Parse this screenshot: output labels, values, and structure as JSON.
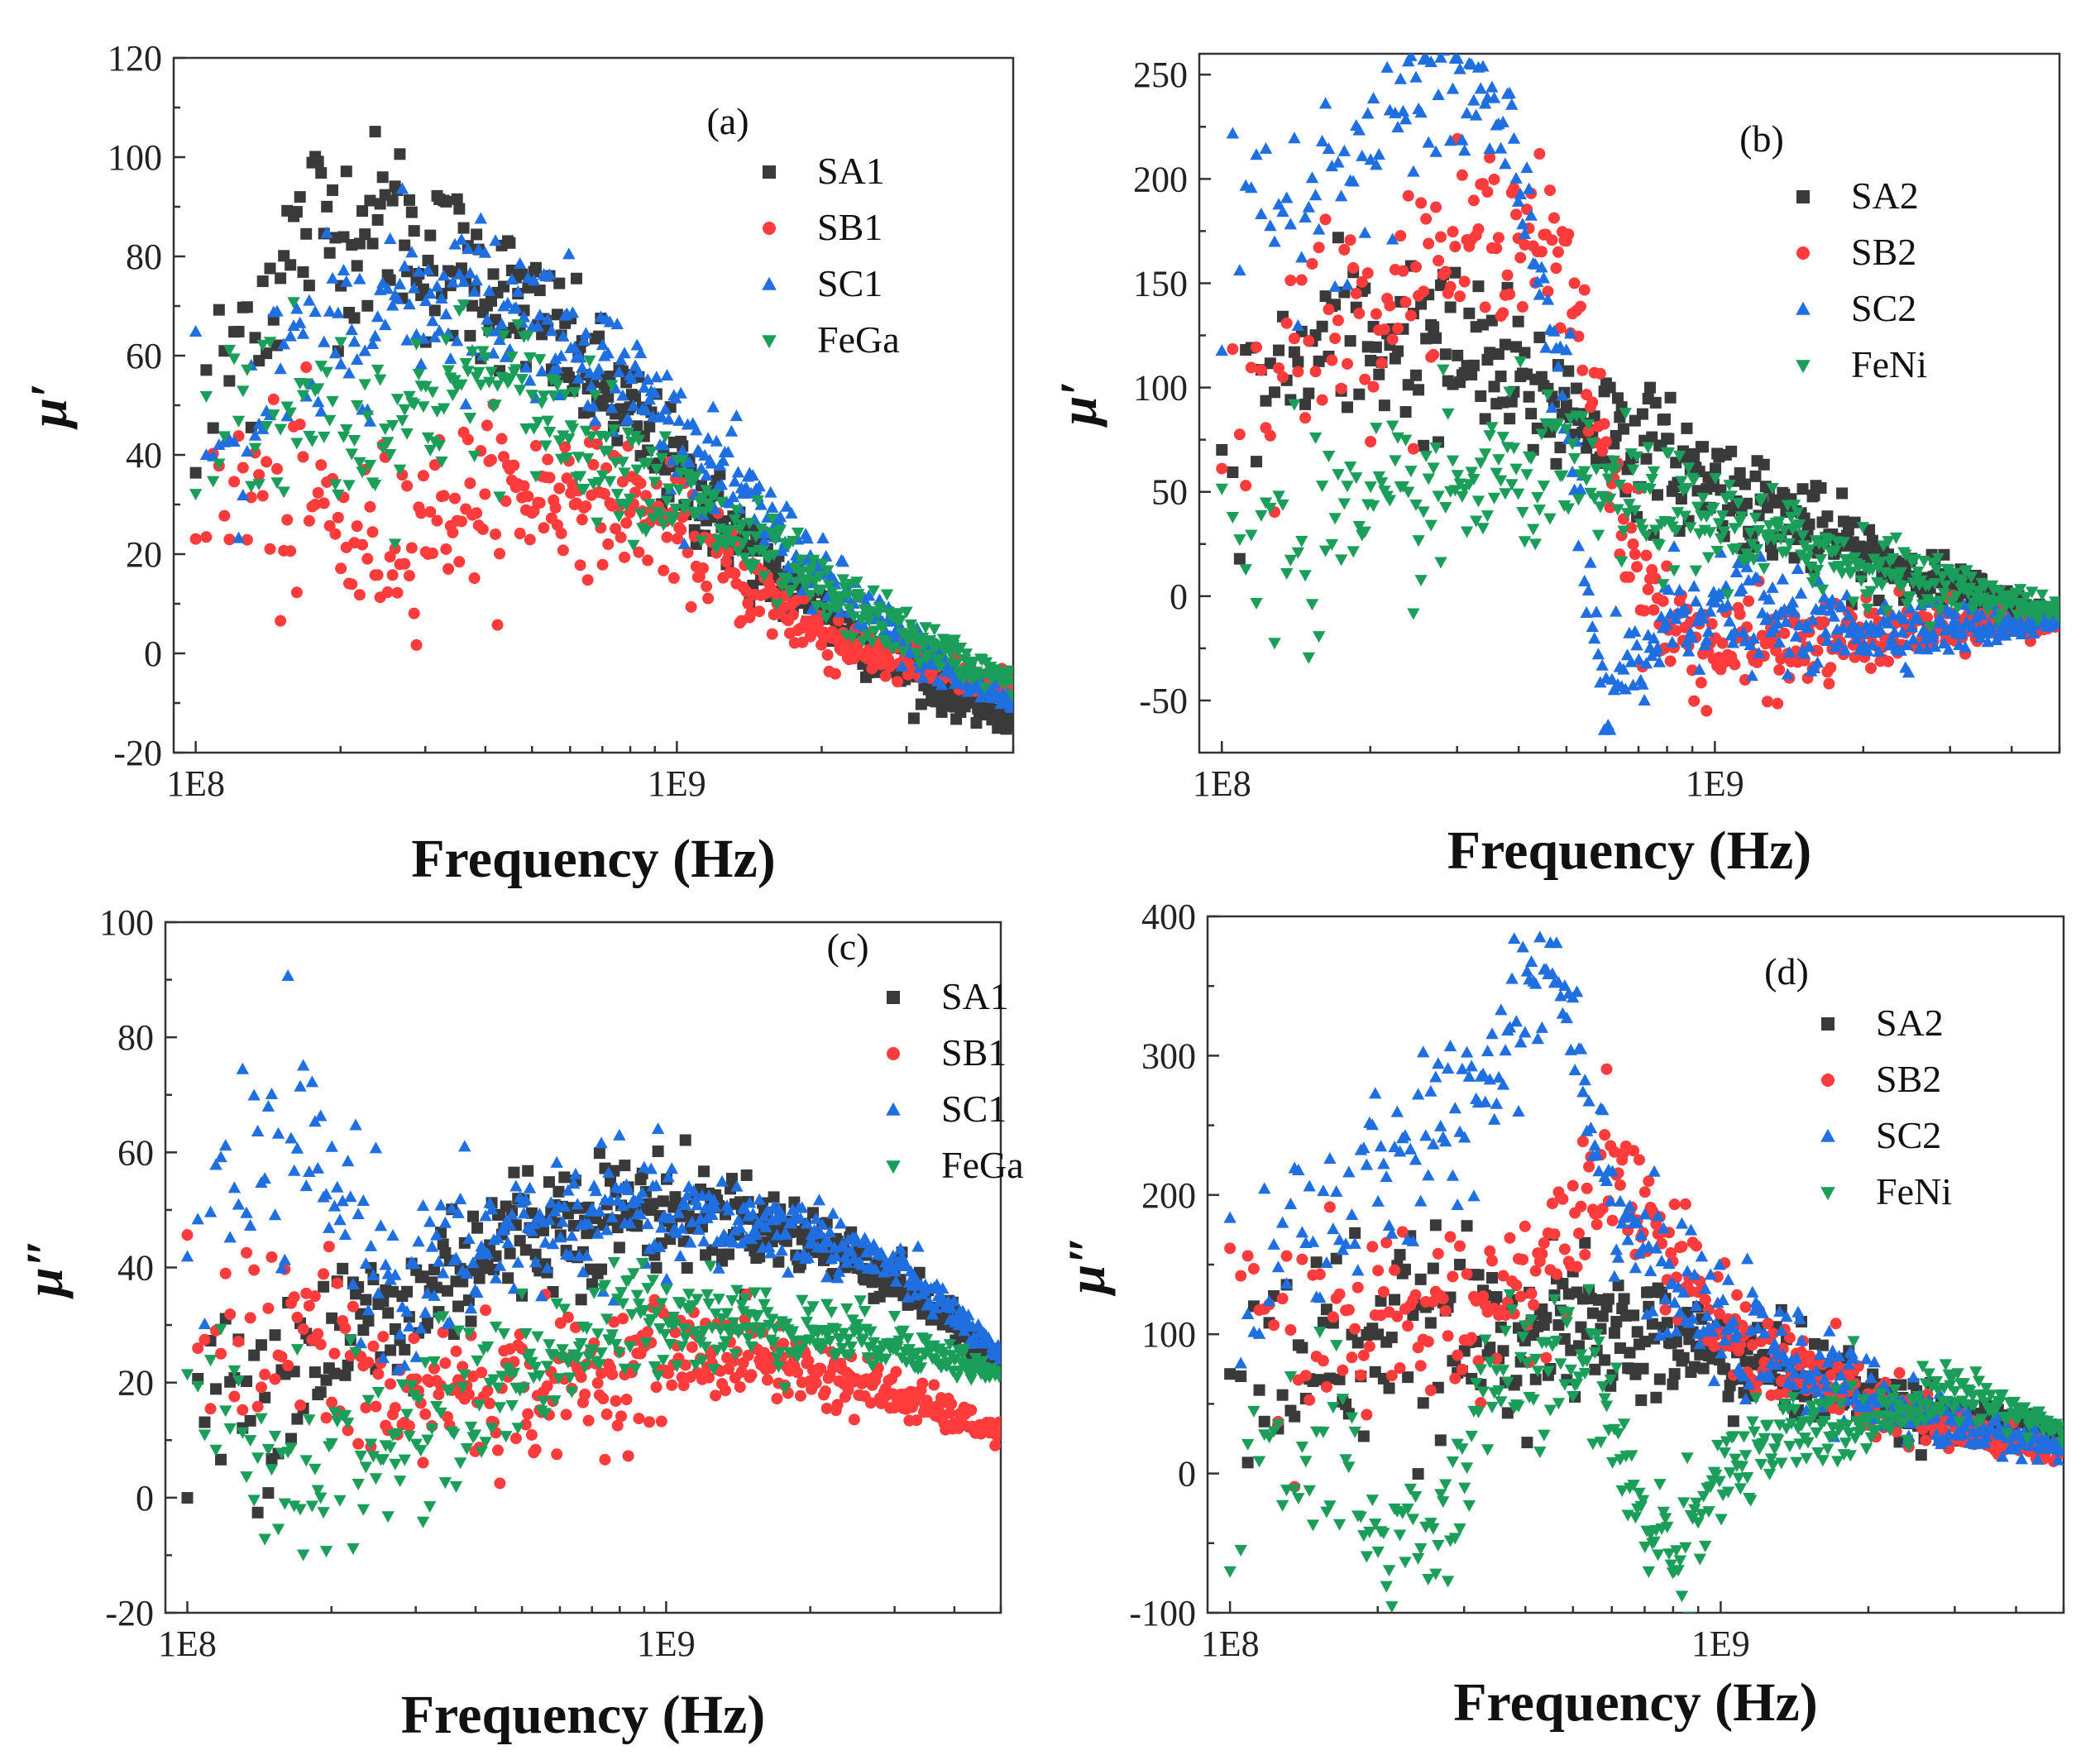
{
  "chart_data": [
    {
      "panel": "(a)",
      "type": "scatter",
      "xscale": "log",
      "xlim": [
        90000000,
        5000000000
      ],
      "ylim": [
        -20,
        120
      ],
      "yticks": [
        -20,
        0,
        20,
        40,
        60,
        80,
        100,
        120
      ],
      "xticks": [
        {
          "v": 100000000,
          "label": "1E8"
        },
        {
          "v": 1000000000,
          "label": "1E9"
        }
      ],
      "xlabel": "Frequency (Hz)",
      "ylabel": "μ′",
      "legend": [
        "SA1",
        "SB1",
        "SC1",
        "FeGa"
      ],
      "series": [
        {
          "name": "SA1",
          "color": "#3a3a3a",
          "marker": "square",
          "x": [
            100000000.0,
            120000000.0,
            150000000.0,
            180000000.0,
            220000000.0,
            260000000.0,
            300000000.0,
            350000000.0,
            400000000.0,
            500000000.0,
            600000000.0,
            800000000.0,
            1000000000.0,
            1500000000.0,
            2000000000.0,
            3000000000.0,
            4000000000.0,
            5000000000.0
          ],
          "y": [
            40,
            62,
            78,
            88,
            85,
            88,
            80,
            78,
            75,
            68,
            60,
            48,
            36,
            18,
            8,
            -4,
            -10,
            -14
          ]
        },
        {
          "name": "SB1",
          "color": "#ff3b3b",
          "marker": "circle",
          "x": [
            100000000.0,
            120000000.0,
            150000000.0,
            180000000.0,
            220000000.0,
            260000000.0,
            300000000.0,
            350000000.0,
            400000000.0,
            500000000.0,
            600000000.0,
            800000000.0,
            1000000000.0,
            1500000000.0,
            2000000000.0,
            3000000000.0,
            4000000000.0,
            5000000000.0
          ],
          "y": [
            22,
            35,
            28,
            30,
            20,
            25,
            28,
            30,
            32,
            32,
            33,
            30,
            25,
            12,
            4,
            -2,
            -5,
            -6
          ]
        },
        {
          "name": "SC1",
          "color": "#1f6fe0",
          "marker": "triangle-up",
          "x": [
            100000000.0,
            120000000.0,
            150000000.0,
            180000000.0,
            220000000.0,
            260000000.0,
            300000000.0,
            350000000.0,
            400000000.0,
            500000000.0,
            600000000.0,
            800000000.0,
            1000000000.0,
            1500000000.0,
            2000000000.0,
            3000000000.0,
            4000000000.0,
            5000000000.0
          ],
          "y": [
            55,
            40,
            55,
            58,
            70,
            72,
            72,
            74,
            72,
            68,
            64,
            55,
            45,
            28,
            15,
            2,
            -6,
            -10
          ]
        },
        {
          "name": "FeGa",
          "color": "#1a9e5a",
          "marker": "triangle-down",
          "x": [
            100000000.0,
            120000000.0,
            150000000.0,
            180000000.0,
            220000000.0,
            260000000.0,
            300000000.0,
            350000000.0,
            400000000.0,
            500000000.0,
            600000000.0,
            800000000.0,
            1000000000.0,
            1500000000.0,
            2000000000.0,
            3000000000.0,
            4000000000.0,
            5000000000.0
          ],
          "y": [
            35,
            55,
            48,
            50,
            45,
            48,
            50,
            55,
            55,
            52,
            46,
            38,
            32,
            20,
            12,
            4,
            -2,
            -6
          ]
        }
      ]
    },
    {
      "panel": "(b)",
      "type": "scatter",
      "xscale": "log",
      "xlim": [
        90000000,
        5000000000
      ],
      "ylim": [
        -75,
        260
      ],
      "yticks": [
        -50,
        0,
        50,
        100,
        150,
        200,
        250
      ],
      "xticks": [
        {
          "v": 100000000,
          "label": "1E8"
        },
        {
          "v": 1000000000,
          "label": "1E9"
        }
      ],
      "xlabel": "Frequency (Hz)",
      "ylabel": "μ′",
      "legend": [
        "SA2",
        "SB2",
        "SC2",
        "FeNi"
      ],
      "series": [
        {
          "name": "SA2",
          "color": "#3a3a3a",
          "marker": "square",
          "x": [
            100000000.0,
            120000000.0,
            150000000.0,
            200000000.0,
            250000000.0,
            300000000.0,
            350000000.0,
            400000000.0,
            500000000.0,
            600000000.0,
            800000000.0,
            1000000000.0,
            1500000000.0,
            2000000000.0,
            3000000000.0,
            4000000000.0,
            5000000000.0
          ],
          "y": [
            50,
            100,
            115,
            125,
            122,
            115,
            110,
            100,
            90,
            80,
            65,
            55,
            35,
            20,
            5,
            -5,
            -10
          ]
        },
        {
          "name": "SB2",
          "color": "#ff3b3b",
          "marker": "circle",
          "x": [
            100000000.0,
            120000000.0,
            150000000.0,
            200000000.0,
            250000000.0,
            300000000.0,
            350000000.0,
            400000000.0,
            450000000.0,
            500000000.0,
            550000000.0,
            600000000.0,
            700000000.0,
            800000000.0,
            1000000000.0,
            1500000000.0,
            2000000000.0,
            3000000000.0,
            5000000000.0
          ],
          "y": [
            75,
            110,
            125,
            140,
            155,
            165,
            175,
            180,
            170,
            150,
            110,
            70,
            15,
            -15,
            -25,
            -25,
            -20,
            -15,
            -12
          ]
        },
        {
          "name": "SC2",
          "color": "#1f6fe0",
          "marker": "triangle-up",
          "x": [
            100000000.0,
            120000000.0,
            150000000.0,
            200000000.0,
            250000000.0,
            300000000.0,
            350000000.0,
            400000000.0,
            450000000.0,
            500000000.0,
            550000000.0,
            600000000.0,
            700000000.0,
            800000000.0,
            900000000.0,
            1000000000.0,
            1500000000.0,
            2000000000.0,
            3000000000.0,
            5000000000.0
          ],
          "y": [
            150,
            170,
            200,
            220,
            240,
            245,
            230,
            195,
            150,
            90,
            10,
            -55,
            -35,
            -10,
            -5,
            -5,
            -15,
            -15,
            -15,
            -12
          ]
        },
        {
          "name": "FeNi",
          "color": "#1a9e5a",
          "marker": "triangle-down",
          "x": [
            100000000.0,
            120000000.0,
            150000000.0,
            200000000.0,
            250000000.0,
            300000000.0,
            350000000.0,
            400000000.0,
            500000000.0,
            600000000.0,
            800000000.0,
            1000000000.0,
            1500000000.0,
            2000000000.0,
            3000000000.0,
            5000000000.0
          ],
          "y": [
            20,
            40,
            35,
            30,
            45,
            50,
            55,
            60,
            58,
            50,
            40,
            35,
            25,
            15,
            5,
            -8
          ]
        }
      ]
    },
    {
      "panel": "(c)",
      "type": "scatter",
      "xscale": "log",
      "xlim": [
        90000000,
        5000000000
      ],
      "ylim": [
        -20,
        100
      ],
      "yticks": [
        -20,
        0,
        20,
        40,
        60,
        80,
        100
      ],
      "xticks": [
        {
          "v": 100000000,
          "label": "1E8"
        },
        {
          "v": 1000000000,
          "label": "1E9"
        }
      ],
      "xlabel": "Frequency (Hz)",
      "ylabel": "μ″",
      "legend": [
        "SA1",
        "SB1",
        "SC1",
        "FeGa"
      ],
      "series": [
        {
          "name": "SA1",
          "color": "#3a3a3a",
          "marker": "square",
          "x": [
            100000000.0,
            130000000.0,
            170000000.0,
            220000000.0,
            280000000.0,
            350000000.0,
            450000000.0,
            600000000.0,
            800000000.0,
            1000000000.0,
            1500000000.0,
            2000000000.0,
            3000000000.0,
            4000000000.0,
            5000000000.0
          ],
          "y": [
            10,
            20,
            25,
            30,
            30,
            40,
            45,
            48,
            50,
            50,
            48,
            45,
            38,
            30,
            24
          ]
        },
        {
          "name": "SB1",
          "color": "#ff3b3b",
          "marker": "circle",
          "x": [
            100000000.0,
            130000000.0,
            170000000.0,
            220000000.0,
            280000000.0,
            350000000.0,
            450000000.0,
            600000000.0,
            800000000.0,
            1000000000.0,
            1500000000.0,
            2000000000.0,
            3000000000.0,
            4000000000.0,
            5000000000.0
          ],
          "y": [
            30,
            25,
            30,
            22,
            15,
            20,
            18,
            20,
            22,
            25,
            25,
            22,
            18,
            14,
            11
          ]
        },
        {
          "name": "SC1",
          "color": "#1f6fe0",
          "marker": "triangle-up",
          "x": [
            100000000.0,
            130000000.0,
            170000000.0,
            220000000.0,
            280000000.0,
            350000000.0,
            450000000.0,
            600000000.0,
            800000000.0,
            1000000000.0,
            1500000000.0,
            2000000000.0,
            3000000000.0,
            4000000000.0,
            5000000000.0
          ],
          "y": [
            40,
            55,
            60,
            50,
            35,
            40,
            45,
            48,
            50,
            48,
            48,
            46,
            40,
            32,
            24
          ]
        },
        {
          "name": "FeGa",
          "color": "#1a9e5a",
          "marker": "triangle-down",
          "x": [
            100000000.0,
            130000000.0,
            170000000.0,
            220000000.0,
            280000000.0,
            350000000.0,
            450000000.0,
            600000000.0,
            800000000.0,
            1000000000.0,
            1500000000.0,
            2000000000.0,
            3000000000.0,
            4000000000.0,
            5000000000.0
          ],
          "y": [
            15,
            10,
            5,
            8,
            10,
            15,
            20,
            25,
            30,
            32,
            30,
            29,
            27,
            24,
            21
          ]
        }
      ]
    },
    {
      "panel": "(d)",
      "type": "scatter",
      "xscale": "log",
      "xlim": [
        90000000,
        5000000000
      ],
      "ylim": [
        -100,
        400
      ],
      "yticks": [
        -100,
        0,
        100,
        200,
        300,
        400
      ],
      "xticks": [
        {
          "v": 100000000,
          "label": "1E8"
        },
        {
          "v": 1000000000,
          "label": "1E9"
        }
      ],
      "xlabel": "Frequency (Hz)",
      "ylabel": "μ″",
      "legend": [
        "SA2",
        "SB2",
        "SC2",
        "FeNi"
      ],
      "series": [
        {
          "name": "SA2",
          "color": "#3a3a3a",
          "marker": "square",
          "x": [
            100000000.0,
            130000000.0,
            170000000.0,
            220000000.0,
            280000000.0,
            350000000.0,
            450000000.0,
            600000000.0,
            800000000.0,
            1000000000.0,
            1500000000.0,
            2000000000.0,
            3000000000.0,
            5000000000.0
          ],
          "y": [
            60,
            80,
            95,
            100,
            100,
            105,
            105,
            100,
            95,
            85,
            70,
            55,
            40,
            25
          ]
        },
        {
          "name": "SB2",
          "color": "#ff3b3b",
          "marker": "circle",
          "x": [
            100000000.0,
            130000000.0,
            170000000.0,
            220000000.0,
            280000000.0,
            350000000.0,
            450000000.0,
            550000000.0,
            600000000.0,
            700000000.0,
            800000000.0,
            1000000000.0,
            1500000000.0,
            2000000000.0,
            3000000000.0,
            5000000000.0
          ],
          "y": [
            105,
            100,
            105,
            110,
            115,
            125,
            160,
            220,
            225,
            195,
            150,
            105,
            70,
            50,
            30,
            15
          ]
        },
        {
          "name": "SC2",
          "color": "#1f6fe0",
          "marker": "triangle-up",
          "x": [
            100000000.0,
            130000000.0,
            170000000.0,
            220000000.0,
            280000000.0,
            350000000.0,
            400000000.0,
            450000000.0,
            500000000.0,
            550000000.0,
            600000000.0,
            700000000.0,
            800000000.0,
            1000000000.0,
            1500000000.0,
            2000000000.0,
            3000000000.0,
            5000000000.0
          ],
          "y": [
            150,
            170,
            190,
            215,
            250,
            300,
            350,
            370,
            330,
            260,
            200,
            160,
            130,
            105,
            75,
            55,
            35,
            18
          ]
        },
        {
          "name": "FeNi",
          "color": "#1a9e5a",
          "marker": "triangle-down",
          "x": [
            100000000.0,
            130000000.0,
            170000000.0,
            220000000.0,
            280000000.0,
            350000000.0,
            450000000.0,
            550000000.0,
            650000000.0,
            800000000.0,
            1000000000.0,
            1500000000.0,
            2000000000.0,
            3000000000.0,
            4000000000.0,
            5000000000.0
          ],
          "y": [
            30,
            10,
            -10,
            -50,
            -40,
            80,
            70,
            80,
            -10,
            -60,
            0,
            30,
            40,
            60,
            45,
            30
          ]
        }
      ]
    }
  ]
}
